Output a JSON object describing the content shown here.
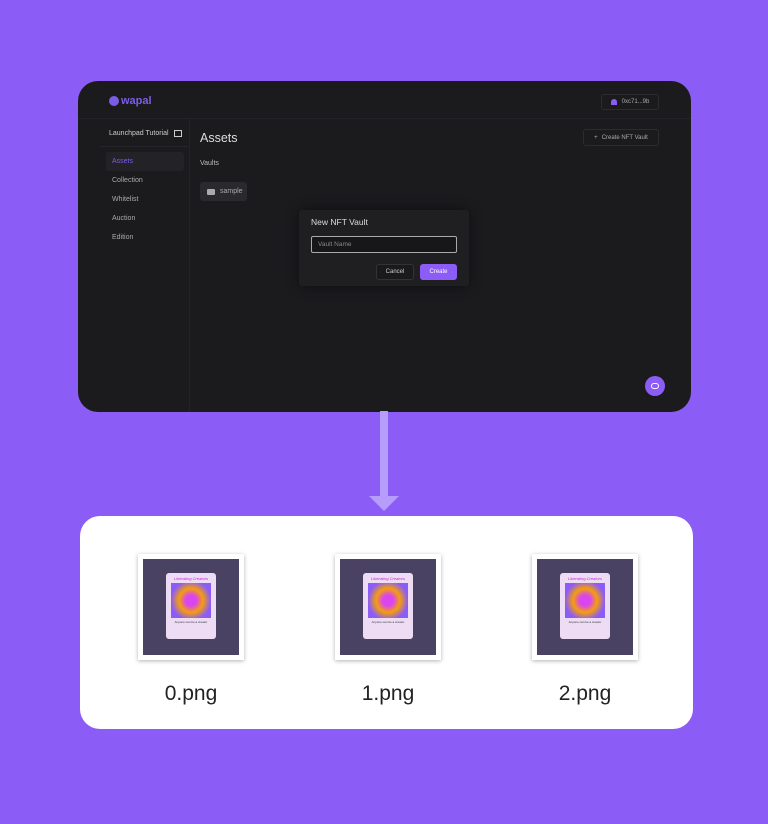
{
  "app": {
    "logo": "wapal",
    "account": "0xc71...9b"
  },
  "sidebar": {
    "project": "Launchpad Tutorial",
    "items": [
      {
        "label": "Assets",
        "active": true
      },
      {
        "label": "Collection"
      },
      {
        "label": "Whitelist"
      },
      {
        "label": "Auction"
      },
      {
        "label": "Edition"
      }
    ]
  },
  "main": {
    "title": "Assets",
    "create_button": "Create NFT Vault",
    "section": "Vaults",
    "folders": [
      {
        "name": "sample"
      }
    ]
  },
  "modal": {
    "title": "New NFT Vault",
    "input_placeholder": "Vault Name",
    "input_value": "",
    "cancel": "Cancel",
    "create": "Create"
  },
  "files": [
    {
      "name": "0.png",
      "poster_title": "Liberating Creators",
      "poster_subtitle": "Anyone can be a creator"
    },
    {
      "name": "1.png",
      "poster_title": "Liberating Creators",
      "poster_subtitle": "Anyone can be a creator"
    },
    {
      "name": "2.png",
      "poster_title": "Liberating Creators",
      "poster_subtitle": "Anyone can be a creator"
    }
  ],
  "colors": {
    "background": "#8b5cf6",
    "accent": "#8b5cf6",
    "window": "#1b1b1e",
    "arrow": "#b69cfb"
  }
}
